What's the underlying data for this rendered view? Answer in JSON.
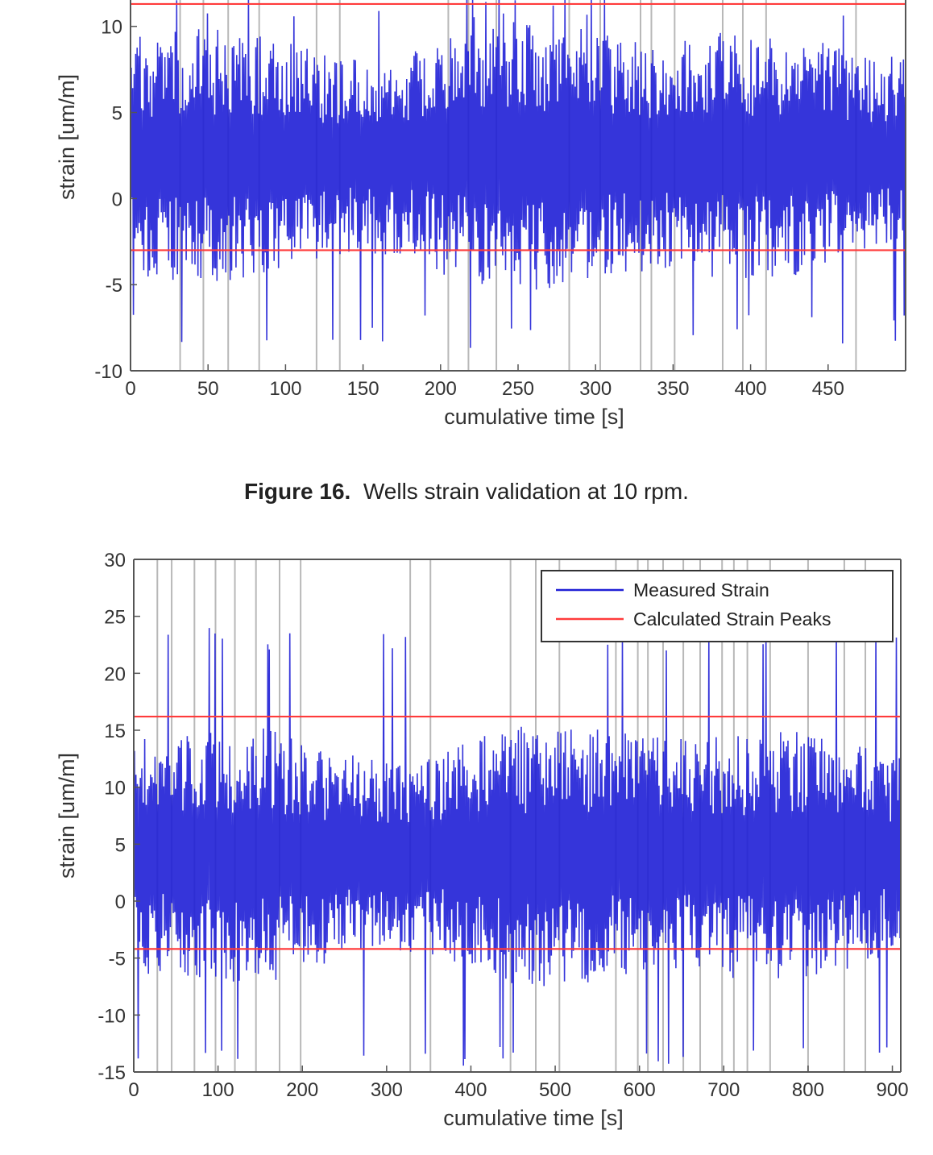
{
  "caption": {
    "label": "Figure 16.",
    "text": "Wells strain validation at 10 rpm."
  },
  "colors": {
    "measured": "#1f1fd6",
    "peaks": "#ff3b3b",
    "grid_vertical": "#b8b8b8",
    "axes": "#555555"
  },
  "chart_data": [
    {
      "type": "line",
      "xlabel": "cumulative time [s]",
      "ylabel": "strain [um/m]",
      "xlim": [
        0,
        500
      ],
      "ylim": [
        -10,
        12
      ],
      "xticks": [
        0,
        50,
        100,
        150,
        200,
        250,
        300,
        350,
        400,
        450
      ],
      "yticks": [
        -10,
        -5,
        0,
        5,
        10
      ],
      "legend": false,
      "vertical_lines": [
        0,
        32,
        47,
        63,
        83,
        120,
        135,
        205,
        218,
        236,
        283,
        303,
        329,
        336,
        351,
        382,
        395,
        410,
        468
      ],
      "series": [
        {
          "name": "Measured Strain",
          "style": "dense-oscillating",
          "center": 2.5,
          "amplitude": 6,
          "min": -8.7,
          "max": 12
        },
        {
          "name": "Calculated Strain Peaks",
          "style": "hline",
          "values": [
            11.3,
            -3.0
          ]
        }
      ]
    },
    {
      "type": "line",
      "xlabel": "cumulative time [s]",
      "ylabel": "strain [um/m]",
      "xlim": [
        0,
        910
      ],
      "ylim": [
        -15,
        30
      ],
      "xticks": [
        0,
        100,
        200,
        300,
        400,
        500,
        600,
        700,
        800,
        900
      ],
      "yticks": [
        -15,
        -10,
        -5,
        0,
        5,
        10,
        15,
        20,
        25,
        30
      ],
      "legend": true,
      "legend_position": "top-right",
      "vertical_lines": [
        0,
        28,
        45,
        72,
        97,
        120,
        145,
        173,
        198,
        328,
        352,
        447,
        477,
        505,
        572,
        598,
        610,
        628,
        652,
        672,
        698,
        712,
        728,
        755,
        800,
        843,
        868
      ],
      "series": [
        {
          "name": "Measured Strain",
          "style": "dense-oscillating",
          "center": 4,
          "amplitude": 9,
          "min": -14.5,
          "max": 24
        },
        {
          "name": "Calculated Strain Peaks",
          "style": "hline",
          "values": [
            16.2,
            -4.2
          ]
        }
      ]
    }
  ]
}
